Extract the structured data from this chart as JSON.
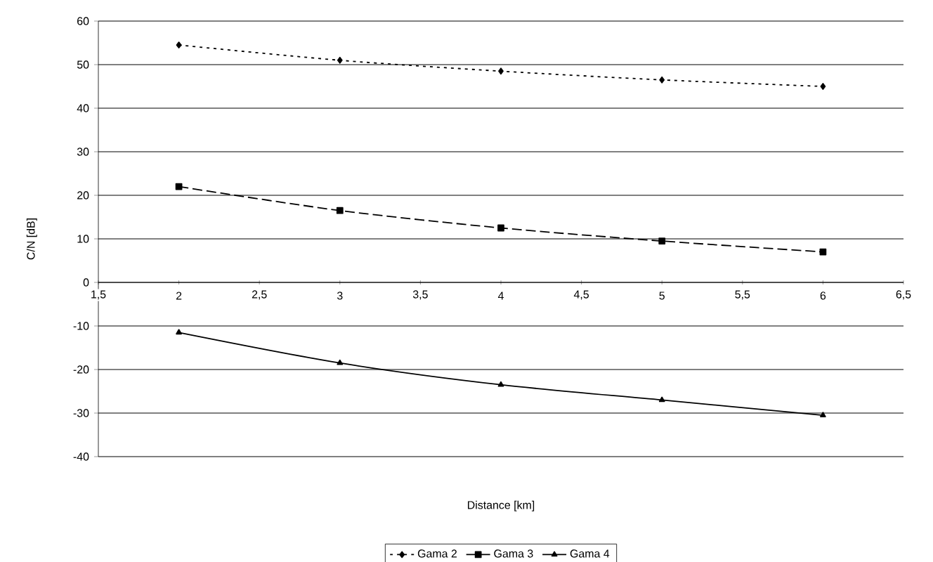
{
  "chart_data": {
    "type": "line",
    "xlabel": "Distance [km]",
    "ylabel": "C/N [dB]",
    "xlim": [
      1.5,
      6.5
    ],
    "xticks": [
      {
        "value": 1.5,
        "label": "1,5"
      },
      2,
      {
        "value": 2.5,
        "label": "2,5"
      },
      3,
      {
        "value": 3.5,
        "label": "3,5"
      },
      4,
      {
        "value": 4.5,
        "label": "4,5"
      },
      5,
      {
        "value": 5.5,
        "label": "5,5"
      },
      6,
      {
        "value": 6.5,
        "label": "6,5"
      }
    ],
    "ylim": [
      -40,
      60
    ],
    "yticks": [
      -40,
      -30,
      -20,
      -10,
      0,
      10,
      20,
      30,
      40,
      50,
      60
    ],
    "grid": "y",
    "legend": "bottom",
    "series": [
      {
        "name": "Gama 2",
        "color": "#000000",
        "marker": "diamond",
        "line_style": "dotted",
        "x": [
          2,
          3,
          4,
          5,
          6
        ],
        "values": [
          54.5,
          51,
          48.5,
          46.5,
          45
        ]
      },
      {
        "name": "Gama 3",
        "color": "#000000",
        "marker": "square",
        "line_style": "dashed",
        "x": [
          2,
          3,
          4,
          5,
          6
        ],
        "values": [
          22,
          16.5,
          12.5,
          9.5,
          7
        ]
      },
      {
        "name": "Gama 4",
        "color": "#000000",
        "marker": "triangle",
        "line_style": "solid",
        "x": [
          2,
          3,
          4,
          5,
          6
        ],
        "values": [
          -11.5,
          -18.5,
          -23.5,
          -27,
          -30.5
        ]
      }
    ]
  }
}
